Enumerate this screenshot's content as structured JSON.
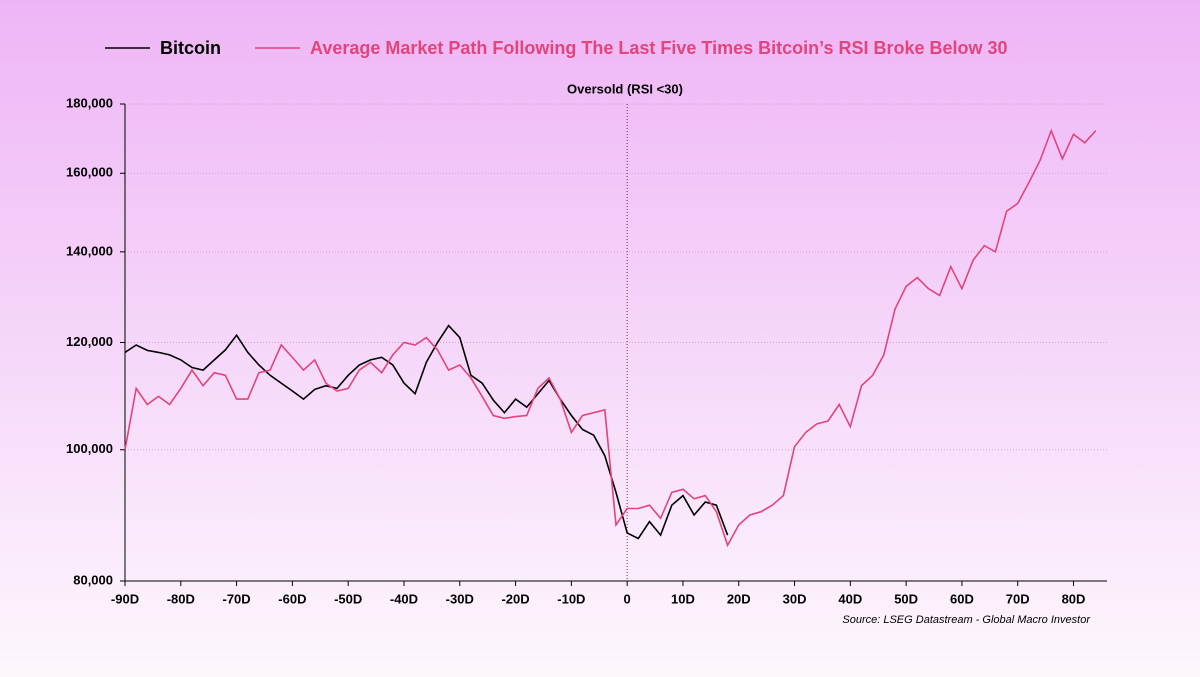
{
  "chart_data": {
    "type": "line",
    "annotation": {
      "text": "Oversold (RSI <30)",
      "x": 0
    },
    "source": "Source: LSEG Datastream - Global Macro Investor",
    "log_scale": true,
    "grid": true,
    "xlim": [
      -90,
      86
    ],
    "ylim": [
      80000,
      180000
    ],
    "xticks": [
      {
        "value": -90,
        "label": "-90D"
      },
      {
        "value": -80,
        "label": "-80D"
      },
      {
        "value": -70,
        "label": "-70D"
      },
      {
        "value": -60,
        "label": "-60D"
      },
      {
        "value": -50,
        "label": "-50D"
      },
      {
        "value": -40,
        "label": "-40D"
      },
      {
        "value": -30,
        "label": "-30D"
      },
      {
        "value": -20,
        "label": "-20D"
      },
      {
        "value": -10,
        "label": "-10D"
      },
      0,
      {
        "value": 10,
        "label": "10D"
      },
      {
        "value": 20,
        "label": "20D"
      },
      {
        "value": 30,
        "label": "30D"
      },
      {
        "value": 40,
        "label": "40D"
      },
      {
        "value": 50,
        "label": "50D"
      },
      {
        "value": 60,
        "label": "60D"
      },
      {
        "value": 70,
        "label": "70D"
      },
      {
        "value": 80,
        "label": "80D"
      }
    ],
    "yticks": [
      {
        "value": 80000,
        "label": "80,000"
      },
      {
        "value": 100000,
        "label": "100,000"
      },
      {
        "value": 120000,
        "label": "120,000"
      },
      {
        "value": 140000,
        "label": "140,000"
      },
      {
        "value": 160000,
        "label": "160,000"
      },
      {
        "value": 180000,
        "label": "180,000"
      }
    ],
    "series": [
      {
        "name": "Bitcoin",
        "color": "#000000",
        "x": [
          -90,
          -88,
          -86,
          -84,
          -82,
          -80,
          -78,
          -76,
          -74,
          -72,
          -70,
          -68,
          -66,
          -64,
          -62,
          -60,
          -58,
          -56,
          -54,
          -52,
          -50,
          -48,
          -46,
          -44,
          -42,
          -40,
          -38,
          -36,
          -34,
          -32,
          -30,
          -28,
          -26,
          -24,
          -22,
          -20,
          -18,
          -16,
          -14,
          -12,
          -10,
          -8,
          -6,
          -4,
          -2,
          0,
          2,
          4,
          6,
          8,
          10,
          12,
          14,
          16,
          18
        ],
        "values": [
          118000,
          119500,
          118400,
          118000,
          117500,
          116500,
          115000,
          114500,
          116500,
          118500,
          121500,
          118000,
          115500,
          113500,
          112000,
          110500,
          109000,
          110800,
          111500,
          111000,
          113500,
          115500,
          116500,
          117000,
          115500,
          112000,
          110000,
          116000,
          120000,
          123500,
          121000,
          113500,
          112000,
          108800,
          106500,
          109000,
          107500,
          110000,
          112500,
          109000,
          106000,
          103500,
          102500,
          99000,
          93000,
          86800,
          86000,
          88500,
          86500,
          91000,
          92500,
          89500,
          91500,
          91000,
          86500
        ]
      },
      {
        "name": "Average Market Path Following The Last Five Times Bitcoin’s RSI Broke Below 30",
        "color": "#e0457b",
        "x": [
          -90,
          -88,
          -86,
          -84,
          -82,
          -80,
          -78,
          -76,
          -74,
          -72,
          -70,
          -68,
          -66,
          -64,
          -62,
          -60,
          -58,
          -56,
          -54,
          -52,
          -50,
          -48,
          -46,
          -44,
          -42,
          -40,
          -38,
          -36,
          -34,
          -32,
          -30,
          -28,
          -26,
          -24,
          -22,
          -20,
          -18,
          -16,
          -14,
          -12,
          -10,
          -8,
          -6,
          -4,
          -2,
          0,
          2,
          4,
          6,
          8,
          10,
          12,
          14,
          16,
          18,
          20,
          22,
          24,
          26,
          28,
          30,
          32,
          34,
          36,
          38,
          40,
          42,
          44,
          46,
          48,
          50,
          52,
          54,
          56,
          58,
          60,
          62,
          64,
          66,
          68,
          70,
          72,
          74,
          76,
          78,
          80,
          82,
          84
        ],
        "values": [
          100000,
          111000,
          108000,
          109500,
          108000,
          111000,
          114500,
          111500,
          114000,
          113500,
          109000,
          109000,
          114000,
          114500,
          119500,
          117000,
          114500,
          116500,
          112000,
          110500,
          111000,
          114500,
          116000,
          114000,
          117500,
          120000,
          119500,
          121000,
          118500,
          114500,
          115500,
          113000,
          109500,
          106000,
          105500,
          105800,
          106000,
          111000,
          113000,
          109000,
          103000,
          106000,
          106500,
          107000,
          88000,
          90500,
          90500,
          91000,
          89000,
          93000,
          93500,
          92000,
          92500,
          90000,
          85000,
          88000,
          89500,
          90000,
          91000,
          92500,
          100500,
          103000,
          104500,
          105000,
          108000,
          104000,
          111500,
          113500,
          117500,
          127000,
          132000,
          134000,
          131500,
          130000,
          136500,
          131500,
          138000,
          141500,
          140000,
          150000,
          152000,
          157500,
          163500,
          172000,
          164000,
          171000,
          168500,
          172000
        ]
      }
    ]
  }
}
